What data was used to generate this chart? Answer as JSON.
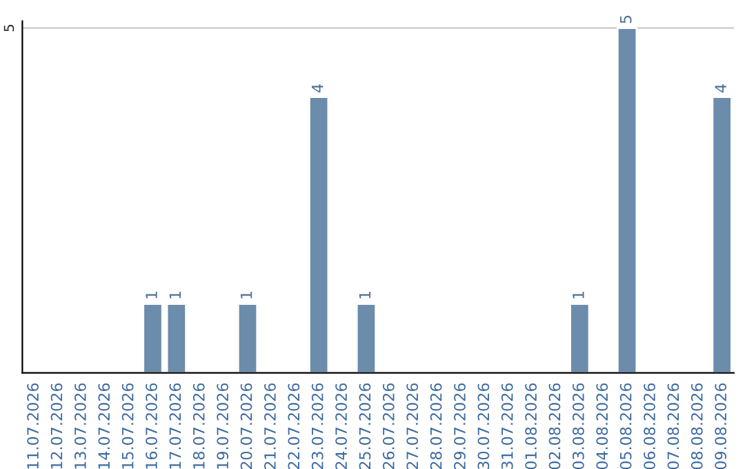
{
  "chart_data": {
    "type": "bar",
    "categories": [
      "11.07.2026",
      "12.07.2026",
      "13.07.2026",
      "14.07.2026",
      "15.07.2026",
      "16.07.2026",
      "17.07.2026",
      "18.07.2026",
      "19.07.2026",
      "20.07.2026",
      "21.07.2026",
      "22.07.2026",
      "23.07.2026",
      "24.07.2026",
      "25.07.2026",
      "26.07.2026",
      "27.07.2026",
      "28.07.2026",
      "29.07.2026",
      "30.07.2026",
      "31.07.2026",
      "01.08.2026",
      "02.08.2026",
      "03.08.2026",
      "04.08.2026",
      "05.08.2026",
      "06.08.2026",
      "07.08.2026",
      "08.08.2026",
      "09.08.2026"
    ],
    "values": [
      0,
      0,
      0,
      0,
      0,
      1,
      1,
      0,
      0,
      1,
      0,
      0,
      4,
      0,
      1,
      0,
      0,
      0,
      0,
      0,
      0,
      0,
      0,
      1,
      0,
      5,
      0,
      0,
      0,
      4
    ],
    "value_labels": [
      null,
      null,
      null,
      null,
      null,
      "1",
      "1",
      null,
      null,
      "1",
      null,
      null,
      "4",
      null,
      "1",
      null,
      null,
      null,
      null,
      null,
      null,
      null,
      null,
      "1",
      null,
      "5",
      null,
      null,
      null,
      "4"
    ],
    "color": "#6b8cab",
    "ylim": [
      0,
      5.1
    ],
    "yticks": [
      5
    ],
    "grid": "y"
  }
}
